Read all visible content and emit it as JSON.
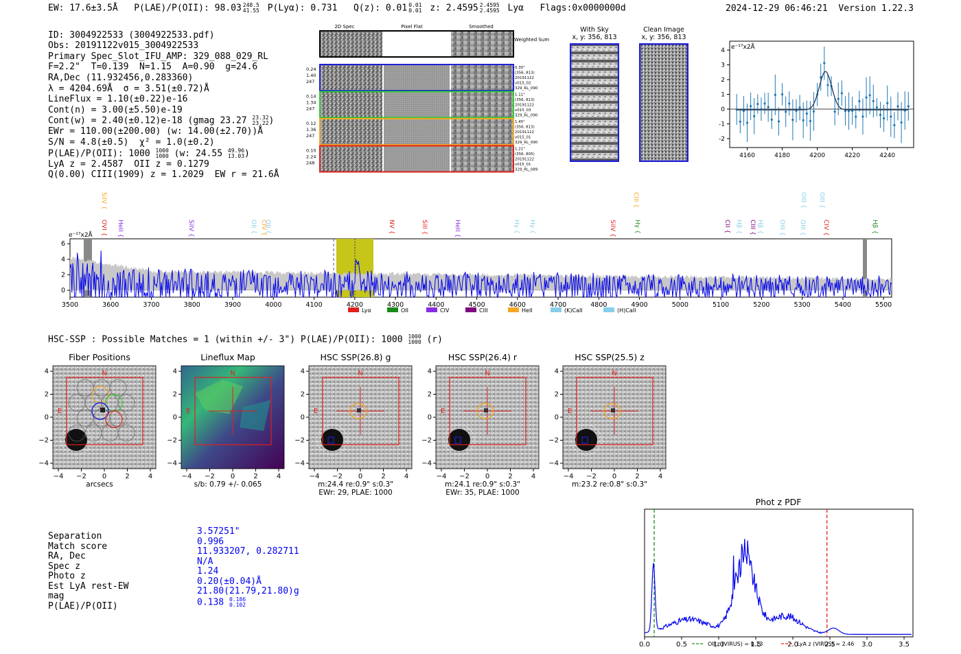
{
  "header": {
    "ew": "EW: 17.6±3.5Å",
    "plae_label": "P(LAE)/P(OII): 98.03",
    "plae_sup": "248.5",
    "plae_sub": "41.55",
    "plya": "P(Lyα): 0.731",
    "qz_label": "Q(z): 0.01",
    "qz_sup": "0.01",
    "qz_sub": "0.01",
    "z_label": "z: 2.4595",
    "z_sup": "2.4595",
    "z_sub": "2.4595",
    "line": "Lyα",
    "flags": "Flags:0x0000000d",
    "datetime": "2024-12-29 06:46:21",
    "version": "Version 1.22.3"
  },
  "info": {
    "id": "ID: 3004922533 (3004922533.pdf)",
    "obs": "Obs: 20191122v015_3004922533",
    "primary": "Primary Spec_Slot_IFU_AMP: 329_088_029_RL",
    "fit": "F=2.2\"  T=0.139  N=1.15  A=0.90  g=24.6",
    "radec": "RA,Dec (11.932456,0.283360)",
    "lambda": "λ = 4204.69Å  σ = 3.51(±0.72)Å",
    "lineflux": "LineFlux = 1.10(±0.22)e-16",
    "contn": "Cont(n) = 3.00(±5.50)e-19",
    "contw": "Cont(w) = 2.40(±0.12)e-18 (gmag 23.27",
    "contw_sup": "23.32",
    "contw_sub": "23.22",
    "contw_end": ")",
    "ewr": "EWr = 110.00(±200.00) (w: 14.00(±2.70))Å",
    "sn": "S/N = 4.8(±0.5)  χ² = 1.0(±0.2)",
    "plae": "P(LAE)/P(OII): 1000",
    "plae_sup": "1000",
    "plae_sub": "1000",
    "plae_w": "(w: 24.55",
    "plae_w_sup": "49.96",
    "plae_w_sub": "13.03",
    "plae_w_end": ")",
    "lyaz": "LyA z = 2.4587  OII z = 0.1279",
    "ciii": "Q(0.00) CIII(1909) z = 1.2029  EW r = 21.6Å"
  },
  "cutouts": {
    "col_titles": [
      "2D Spec",
      "Pixel Flat",
      "Smoothed"
    ],
    "weighted": "Weighted Sum",
    "rows": [
      {
        "left": [
          "0.24",
          "1.40",
          "247"
        ],
        "right": [
          "0.35\"",
          "(356, 813)",
          "20191122",
          "v015_02",
          "329_RL_090"
        ],
        "color": "#1f1fd8"
      },
      {
        "left": [
          "0.14",
          "1.34",
          "247"
        ],
        "right": [
          "1.11\"",
          "(356, 813)",
          "20191122",
          "v015_03",
          "329_RL_090"
        ],
        "color": "#2ecc2e"
      },
      {
        "left": [
          "0.12",
          "1.36",
          "247"
        ],
        "right": [
          "1.45\"",
          "(356, 813)",
          "20191122",
          "v015_01",
          "329_RL_090"
        ],
        "color": "#f5a623"
      },
      {
        "left": [
          "0.10",
          "2.24",
          "248"
        ],
        "right": [
          "1.21\"",
          "(356, 805)",
          "20191122",
          "v015_01",
          "329_RL_089"
        ],
        "color": "#e0201c"
      }
    ],
    "withsky_title": "With Sky",
    "withsky_coord": "x, y: 356, 813",
    "clean_title": "Clean Image",
    "clean_coord": "x, y: 356, 813"
  },
  "zoom_plot": {
    "scale_label": "e⁻¹⁷x2Å",
    "xticks": [
      "4160",
      "4180",
      "4200",
      "4220",
      "4240"
    ],
    "yticks": [
      "4",
      "3",
      "2",
      "1",
      "0",
      "-1",
      "-2"
    ]
  },
  "spectrum": {
    "scale_label": "e⁻¹⁷x2Å",
    "xticks": [
      "3500",
      "3600",
      "3700",
      "3800",
      "3900",
      "4000",
      "4100",
      "4200",
      "4300",
      "4400",
      "4500",
      "4600",
      "4700",
      "4800",
      "4900",
      "5000",
      "5100",
      "5200",
      "5300",
      "5400",
      "5500"
    ],
    "yticks": [
      "6",
      "4",
      "2",
      "0"
    ],
    "lines": [
      {
        "label": "SiIV",
        "color": "#f5a623",
        "row": "top"
      },
      {
        "label": "OVI",
        "color": "#e0201c",
        "row": "low"
      },
      {
        "label": "HeII",
        "color": "#8a2be2",
        "row": "low"
      },
      {
        "label": "SiIV",
        "color": "#8a2be2",
        "row": "low"
      },
      {
        "label": "OII",
        "color": "#87ceeb",
        "row": "low"
      },
      {
        "label": "CIV",
        "color": "#f5a623",
        "row": "low"
      },
      {
        "label": "OII",
        "color": "#87ceeb",
        "row": "low"
      },
      {
        "label": "NV",
        "color": "#e0201c",
        "row": "low"
      },
      {
        "label": "SiII",
        "color": "#e0201c",
        "row": "low"
      },
      {
        "label": "HeII",
        "color": "#8a2be2",
        "row": "low"
      },
      {
        "label": "Hγ",
        "color": "#87ceeb",
        "row": "low"
      },
      {
        "label": "Hγ",
        "color": "#87ceeb",
        "row": "low"
      },
      {
        "label": "SiIV",
        "color": "#e0201c",
        "row": "low"
      },
      {
        "label": "CIII",
        "color": "#f5a623",
        "row": "top"
      },
      {
        "label": "Hγ",
        "color": "#228b22",
        "row": "low"
      },
      {
        "label": "CII",
        "color": "#800080",
        "row": "low"
      },
      {
        "label": "Hβ",
        "color": "#87ceeb",
        "row": "low"
      },
      {
        "label": "CIII",
        "color": "#800080",
        "row": "low"
      },
      {
        "label": "Hβ",
        "color": "#87ceeb",
        "row": "low"
      },
      {
        "label": "OIII",
        "color": "#87ceeb",
        "row": "low"
      },
      {
        "label": "OIII",
        "color": "#87ceeb",
        "row": "low"
      },
      {
        "label": "OIII",
        "color": "#87ceeb",
        "row": "top"
      },
      {
        "label": "OIII",
        "color": "#87ceeb",
        "row": "top"
      },
      {
        "label": "CIV",
        "color": "#e0201c",
        "row": "low"
      },
      {
        "label": "Hβ",
        "color": "#228b22",
        "row": "low"
      }
    ],
    "legend": [
      {
        "label": "Lyα",
        "color": "#e0201c"
      },
      {
        "label": "OII",
        "color": "#1a8a1a"
      },
      {
        "label": "CIV",
        "color": "#8a2be2"
      },
      {
        "label": "CIII",
        "color": "#800080"
      },
      {
        "label": "HeII",
        "color": "#f5a623"
      },
      {
        "label": "(K)CaII",
        "color": "#87ceeb"
      },
      {
        "label": "(H)CaII",
        "color": "#87ceeb"
      }
    ]
  },
  "matches": {
    "line": "HSC-SSP : Possible Matches = 1 (within +/- 3\")  P(LAE)/P(OII): 1000",
    "sup": "1000",
    "sub": "1000",
    "end": "(r)"
  },
  "panels": [
    {
      "title": "Fiber Positions",
      "caption1": "arcsecs",
      "caption2": ""
    },
    {
      "title": "Lineflux Map",
      "caption1": "s/b: 0.79 +/- 0.065",
      "caption2": ""
    },
    {
      "title": "HSC SSP(26.8) g",
      "caption1": "m:24.4  re:0.9\"  s:0.3\"",
      "caption2": "EWr: 29, PLAE: 1000"
    },
    {
      "title": "HSC SSP(26.4) r",
      "caption1": "m:24.1  re:0.9\"  s:0.3\"",
      "caption2": "EWr: 35, PLAE: 1000"
    },
    {
      "title": "HSC SSP(25.5) z",
      "caption1": "m:23.2  re:0.8\"  s:0.3\"",
      "caption2": ""
    }
  ],
  "panel_axis": {
    "xticks": [
      "−4",
      "−2",
      "0",
      "2",
      "4"
    ],
    "yticks": [
      "4",
      "2",
      "0",
      "−2",
      "−4"
    ],
    "n": "N",
    "e": "E"
  },
  "separation": {
    "keys": [
      "Separation",
      "Match score",
      "RA, Dec",
      "Spec z",
      "Photo z",
      "Est LyA rest-EW",
      "mag",
      "P(LAE)/P(OII)"
    ],
    "values": [
      "3.57251\"",
      "0.996",
      "11.933207, 0.282711",
      "N/A",
      "1.24",
      "0.20(±0.04)Å",
      "21.80(21.79,21.80)g",
      "0.138"
    ],
    "plae_sup": "0.186",
    "plae_sub": "0.102"
  },
  "photz": {
    "title": "Phot z PDF",
    "xticks": [
      "0.0",
      "0.5",
      "1.0",
      "1.5",
      "2.0",
      "2.5",
      "3.0",
      "3.5"
    ],
    "oii_legend": "OII z (VIRUS) = 0.13",
    "lya_legend": "LyA z (VIRUS) = 2.46",
    "oii_z": 0.13,
    "lya_z": 2.46
  }
}
